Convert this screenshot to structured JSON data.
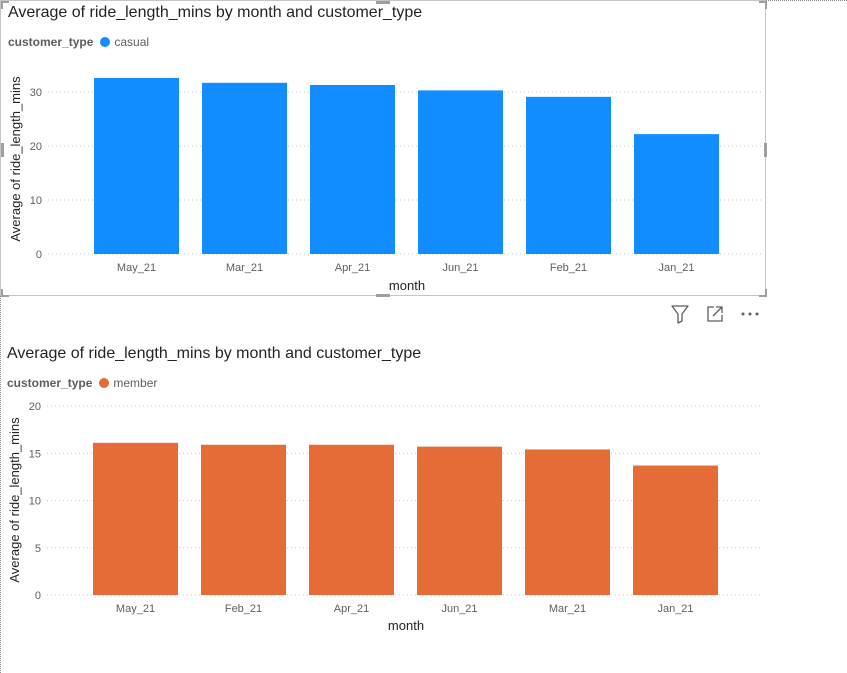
{
  "header_icons": {
    "filter_icon": "filter-icon",
    "focus_icon": "focus-mode-icon",
    "more_icon": "more-options-icon"
  },
  "chart_data": [
    {
      "type": "bar",
      "title": "Average of ride_length_mins by month and customer_type",
      "legend_title": "customer_type",
      "xlabel": "month",
      "ylabel": "Average of ride_length_mins",
      "categories": [
        "May_21",
        "Mar_21",
        "Apr_21",
        "Jun_21",
        "Feb_21",
        "Jan_21"
      ],
      "series": [
        {
          "name": "casual",
          "values": [
            32.6,
            31.7,
            31.3,
            30.3,
            29.1,
            22.2
          ],
          "color": "#118DFF"
        }
      ],
      "yticks": [
        0,
        10,
        20,
        30
      ],
      "ylim": [
        0,
        35
      ],
      "grid": true,
      "legend_position": "top-left"
    },
    {
      "type": "bar",
      "title": "Average of ride_length_mins by month and customer_type",
      "legend_title": "customer_type",
      "xlabel": "month",
      "ylabel": "Average of ride_length_mins",
      "categories": [
        "May_21",
        "Feb_21",
        "Apr_21",
        "Jun_21",
        "Mar_21",
        "Jan_21"
      ],
      "series": [
        {
          "name": "member",
          "values": [
            16.1,
            15.9,
            15.9,
            15.7,
            15.4,
            13.7
          ],
          "color": "#E66C37"
        }
      ],
      "yticks": [
        0,
        5,
        10,
        15,
        20
      ],
      "ylim": [
        0,
        20
      ],
      "grid": true,
      "legend_position": "top-left"
    }
  ]
}
